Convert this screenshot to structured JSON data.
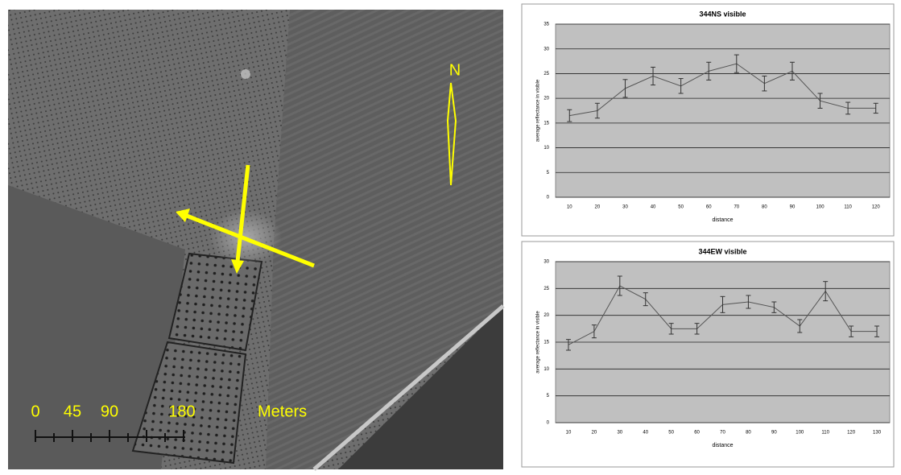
{
  "image": {
    "north": "N",
    "scale_labels": [
      0,
      45,
      90,
      180
    ],
    "scale_unit": "Meters"
  },
  "chart_data": [
    {
      "type": "line",
      "title": "344NS visible",
      "x_label": "distance",
      "y_label": "average reflectance in visible",
      "categories": [
        "10",
        "20",
        "30",
        "40",
        "50",
        "60",
        "70",
        "80",
        "90",
        "100",
        "110",
        "120"
      ],
      "values": [
        16.5,
        17.5,
        22,
        24.5,
        22.5,
        25.5,
        27,
        23,
        25.5,
        19.5,
        18,
        18
      ],
      "errors": [
        1.2,
        1.5,
        1.8,
        1.8,
        1.5,
        1.8,
        1.8,
        1.5,
        1.8,
        1.5,
        1.2,
        1
      ],
      "color": "#555555",
      "ylim": [
        0,
        35
      ],
      "yticks": [
        0,
        5,
        10,
        15,
        20,
        25,
        30,
        35
      ],
      "grid": true
    },
    {
      "type": "line",
      "title": "344EW visible",
      "x_label": "distance",
      "y_label": "average reflectance in visible",
      "categories": [
        "10",
        "20",
        "30",
        "40",
        "50",
        "60",
        "70",
        "80",
        "90",
        "100",
        "110",
        "120",
        "130"
      ],
      "values": [
        14.5,
        17,
        25.5,
        23,
        17.5,
        17.5,
        22,
        22.5,
        21.5,
        18,
        24.5,
        17,
        17
      ],
      "errors": [
        1,
        1.2,
        1.8,
        1.2,
        1,
        1,
        1.5,
        1.2,
        1,
        1.2,
        1.8,
        1,
        1
      ],
      "color": "#555555",
      "ylim": [
        0,
        30
      ],
      "yticks": [
        0,
        5,
        10,
        15,
        20,
        25,
        30
      ],
      "grid": true
    }
  ]
}
